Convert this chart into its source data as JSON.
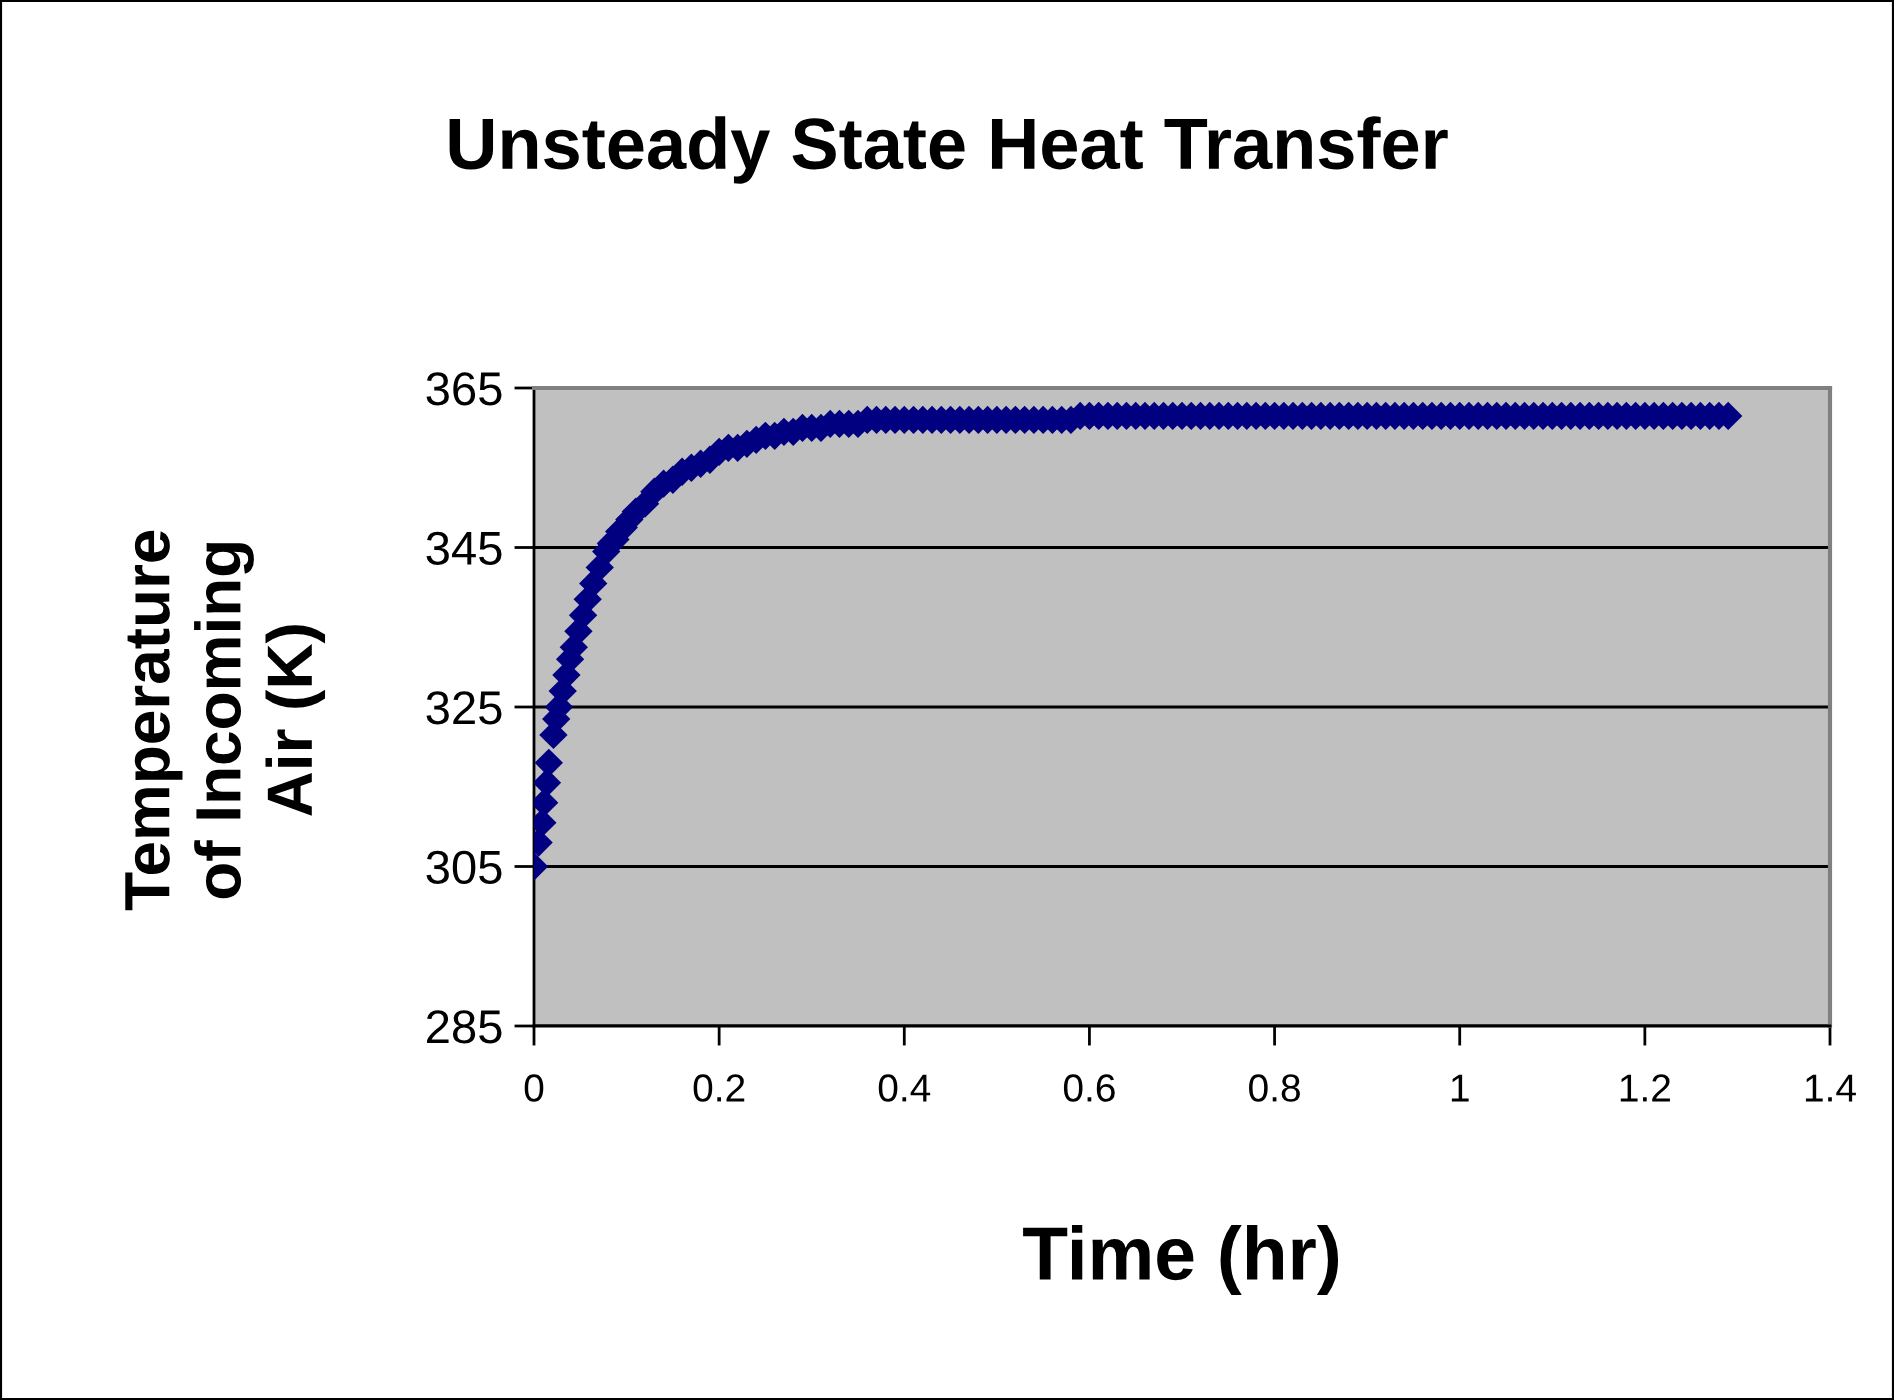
{
  "chart_data": {
    "type": "scatter",
    "title": "Unsteady State Heat Transfer",
    "xlabel": "Time (hr)",
    "ylabel": "Temperature of Incoming Air (K)",
    "x": [
      0,
      0.005,
      0.009,
      0.011,
      0.014,
      0.016,
      0.021,
      0.024,
      0.027,
      0.031,
      0.035,
      0.039,
      0.043,
      0.048,
      0.053,
      0.058,
      0.064,
      0.071,
      0.078,
      0.083,
      0.088,
      0.092,
      0.097,
      0.103,
      0.11,
      0.12,
      0.13,
      0.14,
      0.15,
      0.16,
      0.17,
      0.18,
      0.19,
      0.2,
      0.21,
      0.22,
      0.23,
      0.24,
      0.25,
      0.26,
      0.27,
      0.28,
      0.29,
      0.3,
      0.31,
      0.32,
      0.33,
      0.34,
      0.35,
      0.36,
      0.37,
      0.38,
      0.39,
      0.4,
      0.41,
      0.42,
      0.43,
      0.44,
      0.45,
      0.46,
      0.47,
      0.48,
      0.49,
      0.5,
      0.51,
      0.52,
      0.53,
      0.54,
      0.55,
      0.56,
      0.57,
      0.58,
      0.59,
      0.6,
      0.61,
      0.62,
      0.63,
      0.64,
      0.65,
      0.66,
      0.67,
      0.68,
      0.69,
      0.7,
      0.71,
      0.72,
      0.73,
      0.74,
      0.75,
      0.76,
      0.77,
      0.78,
      0.79,
      0.8,
      0.81,
      0.82,
      0.83,
      0.84,
      0.85,
      0.86,
      0.87,
      0.88,
      0.89,
      0.9,
      0.91,
      0.92,
      0.93,
      0.94,
      0.95,
      0.96,
      0.97,
      0.98,
      0.99,
      1.0,
      1.01,
      1.02,
      1.03,
      1.04,
      1.05,
      1.06,
      1.07,
      1.08,
      1.09,
      1.1,
      1.11,
      1.12,
      1.13,
      1.14,
      1.15,
      1.16,
      1.17,
      1.18,
      1.19,
      1.2,
      1.21,
      1.22,
      1.23,
      1.24,
      1.25,
      1.26,
      1.27,
      1.28,
      1.29
    ],
    "series": [
      {
        "color": "#000080",
        "values": [
          305,
          308,
          310.5,
          313,
          315.5,
          318,
          321.5,
          323.5,
          325,
          327,
          329,
          331,
          332.5,
          334.5,
          336.5,
          338.5,
          340.5,
          342.5,
          344.5,
          345.5,
          346,
          347,
          347.5,
          348.5,
          349.5,
          350.5,
          352,
          353,
          353.5,
          354.5,
          355,
          355.5,
          356,
          357,
          357.5,
          357.5,
          358,
          358.5,
          359,
          359,
          359.5,
          359.5,
          360,
          360,
          360,
          360.5,
          360.5,
          360.5,
          360.5,
          361,
          361,
          361,
          361,
          361,
          361,
          361,
          361,
          361,
          361,
          361,
          361,
          361,
          361,
          361,
          361,
          361,
          361,
          361,
          361,
          361,
          361,
          361,
          361.5,
          361.5,
          361.5,
          361.5,
          361.5,
          361.5,
          361.5,
          361.5,
          361.5,
          361.5,
          361.5,
          361.5,
          361.5,
          361.5,
          361.5,
          361.5,
          361.5,
          361.5,
          361.5,
          361.5,
          361.5,
          361.5,
          361.5,
          361.5,
          361.5,
          361.5,
          361.5,
          361.5,
          361.5,
          361.5,
          361.5,
          361.5,
          361.5,
          361.5,
          361.5,
          361.5,
          361.5,
          361.5,
          361.5,
          361.5,
          361.5,
          361.5,
          361.5,
          361.5,
          361.5,
          361.5,
          361.5,
          361.5,
          361.5,
          361.5,
          361.5,
          361.5,
          361.5,
          361.5,
          361.5,
          361.5,
          361.5,
          361.5,
          361.5,
          361.5,
          361.5,
          361.5,
          361.5,
          361.5,
          361.5,
          361.5,
          361.5,
          361.5,
          361.5,
          361.5,
          361.5
        ]
      }
    ],
    "xlim": [
      0,
      1.4
    ],
    "xticks": [
      0,
      0.2,
      0.4,
      0.6,
      0.8,
      1,
      1.2,
      1.4
    ],
    "ylim": [
      285,
      365
    ],
    "yticks": [
      285,
      305,
      325,
      345,
      365
    ],
    "grid": "y",
    "marker": "diamond"
  }
}
